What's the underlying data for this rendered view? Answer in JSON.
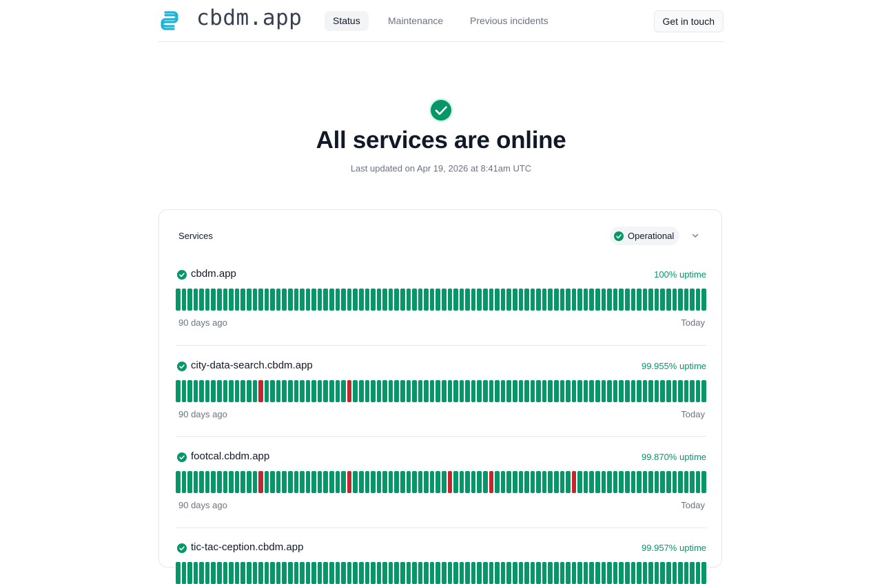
{
  "header": {
    "brand": "cbdm.app",
    "nav": [
      "Status",
      "Maintenance",
      "Previous incidents"
    ],
    "contact_label": "Get in touch"
  },
  "hero": {
    "title": "All services are online",
    "updated": "Last updated on Apr 19, 2026 at 8:41am UTC"
  },
  "services_panel": {
    "title": "Services",
    "status_label": "Operational",
    "range_start_label": "90 days ago",
    "range_end_label": "Today",
    "services": [
      {
        "name": "cbdm.app",
        "uptime": "100% uptime",
        "outage_bars": []
      },
      {
        "name": "city-data-search.cbdm.app",
        "uptime": "99.955% uptime",
        "outage_bars": [
          14,
          29
        ]
      },
      {
        "name": "footcal.cbdm.app",
        "uptime": "99.870% uptime",
        "outage_bars": [
          14,
          29,
          46,
          53,
          67
        ]
      },
      {
        "name": "tic-tac-ception.cbdm.app",
        "uptime": "99.957% uptime",
        "outage_bars": []
      }
    ]
  },
  "colors": {
    "operational": "#069668",
    "outage": "#c1272d",
    "uptime_text": "#059669",
    "logo": "#1bb3d6"
  },
  "icons": {
    "logo": "stacked-loops-logo-icon",
    "hero": "check-circle-icon",
    "service_status": "check-circle-icon",
    "dropdown": "chevron-down-icon"
  }
}
